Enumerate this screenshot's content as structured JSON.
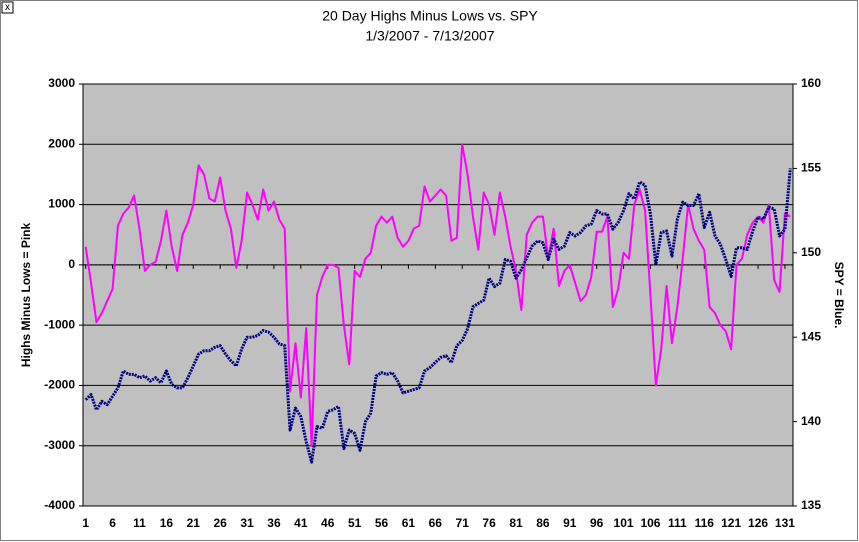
{
  "close_label": "x",
  "chart_data": {
    "type": "line",
    "title": "20 Day Highs Minus Lows vs. SPY",
    "subtitle": "1/3/2007  - 7/13/2007",
    "y_label": "Highs Minus Lows = Pink",
    "y2_label": "SPY = Blue.",
    "x": [
      1,
      2,
      3,
      4,
      5,
      6,
      7,
      8,
      9,
      10,
      11,
      12,
      13,
      14,
      15,
      16,
      17,
      18,
      19,
      20,
      21,
      22,
      23,
      24,
      25,
      26,
      27,
      28,
      29,
      30,
      31,
      32,
      33,
      34,
      35,
      36,
      37,
      38,
      39,
      40,
      41,
      42,
      43,
      44,
      45,
      46,
      47,
      48,
      49,
      50,
      51,
      52,
      53,
      54,
      55,
      56,
      57,
      58,
      59,
      60,
      61,
      62,
      63,
      64,
      65,
      66,
      67,
      68,
      69,
      70,
      71,
      72,
      73,
      74,
      75,
      76,
      77,
      78,
      79,
      80,
      81,
      82,
      83,
      84,
      85,
      86,
      87,
      88,
      89,
      90,
      91,
      92,
      93,
      94,
      95,
      96,
      97,
      98,
      99,
      100,
      101,
      102,
      103,
      104,
      105,
      106,
      107,
      108,
      109,
      110,
      111,
      112,
      113,
      114,
      115,
      116,
      117,
      118,
      119,
      120,
      121,
      122,
      123,
      124,
      125,
      126,
      127,
      128,
      129,
      130,
      131,
      132
    ],
    "xlim": [
      0.5,
      132.5
    ],
    "xticks": [
      1,
      6,
      11,
      16,
      21,
      26,
      31,
      36,
      41,
      46,
      51,
      56,
      61,
      66,
      71,
      76,
      81,
      86,
      91,
      96,
      101,
      106,
      111,
      116,
      121,
      126,
      131
    ],
    "ylim": [
      -4000,
      3000
    ],
    "yticks": [
      -4000,
      -3000,
      -2000,
      -1000,
      0,
      1000,
      2000,
      3000
    ],
    "y2lim": [
      135,
      160
    ],
    "y2ticks": [
      135,
      140,
      145,
      150,
      155,
      160
    ],
    "grid": true,
    "plot_background": "#c0c0c0",
    "series": [
      {
        "color": "#ff00ff",
        "values": [
          300,
          -300,
          -950,
          -800,
          -600,
          -400,
          650,
          850,
          950,
          1150,
          600,
          -100,
          0,
          50,
          400,
          900,
          300,
          -100,
          500,
          700,
          1000,
          1650,
          1500,
          1100,
          1050,
          1450,
          900,
          600,
          -50,
          400,
          1200,
          1000,
          750,
          1250,
          900,
          1050,
          750,
          600,
          -2100,
          -1300,
          -2200,
          -1050,
          -3000,
          -500,
          -200,
          0,
          0,
          -50,
          -1000,
          -1650,
          -100,
          -200,
          100,
          200,
          650,
          800,
          700,
          800,
          450,
          300,
          400,
          600,
          650,
          1300,
          1050,
          1150,
          1250,
          1150,
          400,
          450,
          2000,
          1500,
          800,
          250,
          1200,
          1000,
          500,
          1200,
          800,
          300,
          -100,
          -750,
          500,
          700,
          800,
          800,
          100,
          600,
          -350,
          -100,
          0,
          -300,
          -600,
          -500,
          -200,
          550,
          550,
          800,
          -700,
          -400,
          200,
          100,
          1000,
          1250,
          900,
          -500,
          -2000,
          -1400,
          -350,
          -1300,
          -700,
          100,
          1000,
          600,
          400,
          250,
          -700,
          -800,
          -1000,
          -1100,
          -1400,
          0,
          100,
          500,
          700,
          800,
          700,
          1000,
          -250,
          -450,
          850,
          800
        ]
      },
      {
        "color": "#000080",
        "axis": "y2",
        "values": [
          141.3,
          141.6,
          140.7,
          141.2,
          141.0,
          141.5,
          142.0,
          143.0,
          142.8,
          142.8,
          142.6,
          142.7,
          142.4,
          142.6,
          142.3,
          143.0,
          142.2,
          142.0,
          142.0,
          142.6,
          143.3,
          144.0,
          144.2,
          144.2,
          144.4,
          144.5,
          144.0,
          143.6,
          143.3,
          144.3,
          145.0,
          145.0,
          145.1,
          145.4,
          145.3,
          145.0,
          144.6,
          144.5,
          139.5,
          140.8,
          140.3,
          138.8,
          137.6,
          139.7,
          139.6,
          140.6,
          140.7,
          140.9,
          138.4,
          139.5,
          139.3,
          138.3,
          140.0,
          140.5,
          142.7,
          142.9,
          142.8,
          142.9,
          142.4,
          141.7,
          141.8,
          141.9,
          142.0,
          143.0,
          143.2,
          143.5,
          143.8,
          143.9,
          143.5,
          144.5,
          144.8,
          145.5,
          146.8,
          147.0,
          147.2,
          148.5,
          148.0,
          148.2,
          149.6,
          149.5,
          148.5,
          149.0,
          149.7,
          150.4,
          150.7,
          150.6,
          149.6,
          150.8,
          150.2,
          150.4,
          151.2,
          151.0,
          151.2,
          151.6,
          151.7,
          152.5,
          152.3,
          152.3,
          151.4,
          151.8,
          152.5,
          153.5,
          153.2,
          154.2,
          154.0,
          152.3,
          149.3,
          151.2,
          151.3,
          149.8,
          152.0,
          153.0,
          152.8,
          152.8,
          153.5,
          151.5,
          152.4,
          151.0,
          150.5,
          149.6,
          148.6,
          150.3,
          150.3,
          150.2,
          151.3,
          152.1,
          152.0,
          152.7,
          152.6,
          151.0,
          151.4,
          155.0
        ]
      }
    ]
  }
}
